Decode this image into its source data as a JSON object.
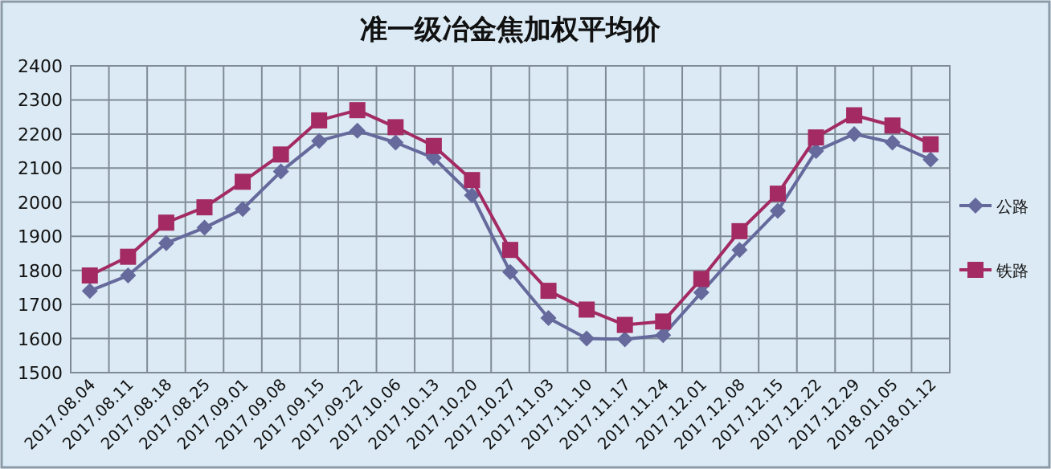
{
  "chart_data": {
    "type": "line",
    "title": "准一级冶金焦加权平均价",
    "categories": [
      "2017.08.04",
      "2017.08.11",
      "2017.08.18",
      "2017.08.25",
      "2017.09.01",
      "2017.09.08",
      "2017.09.15",
      "2017.09.22",
      "2017.10.06",
      "2017.10.13",
      "2017.10.20",
      "2017.10.27",
      "2017.11.03",
      "2017.11.10",
      "2017.11.17",
      "2017.11.24",
      "2017.12.01",
      "2017.12.08",
      "2017.12.15",
      "2017.12.22",
      "2017.12.29",
      "2018.01.05",
      "2018.01.12"
    ],
    "series": [
      {
        "name": "公路",
        "color": "#65699c",
        "marker": "diamond",
        "values": [
          1740,
          1785,
          1880,
          1925,
          1980,
          2090,
          2180,
          2210,
          2175,
          2130,
          2020,
          1795,
          1660,
          1600,
          1598,
          1610,
          1735,
          1860,
          1975,
          2150,
          2200,
          2175,
          2125
        ]
      },
      {
        "name": "铁路",
        "color": "#a32a62",
        "marker": "square",
        "values": [
          1785,
          1840,
          1940,
          1985,
          2060,
          2140,
          2240,
          2270,
          2220,
          2165,
          2065,
          1860,
          1740,
          1685,
          1640,
          1650,
          1775,
          1915,
          2025,
          2190,
          2255,
          2225,
          2170
        ]
      }
    ],
    "ylim": [
      1500,
      2400
    ],
    "yticks": [
      1500,
      1600,
      1700,
      1800,
      1900,
      2000,
      2100,
      2200,
      2300,
      2400
    ],
    "grid": true,
    "legend": "right"
  }
}
